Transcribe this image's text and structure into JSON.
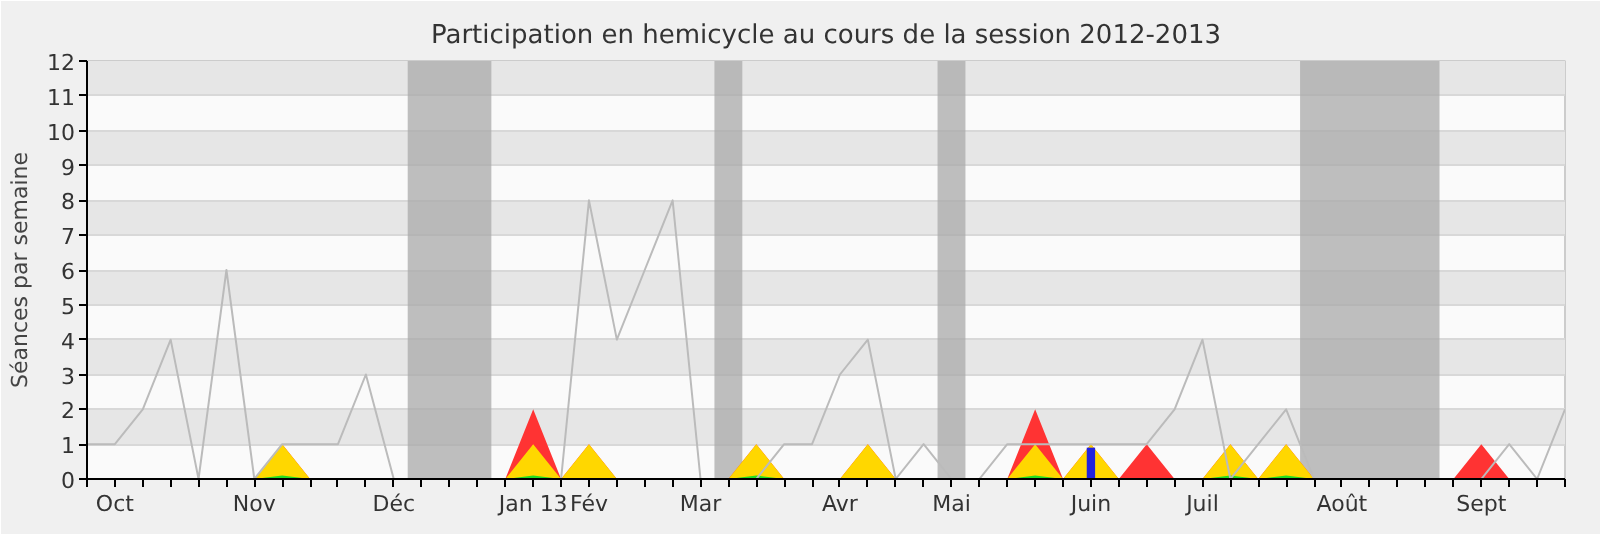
{
  "chart_data": {
    "type": "line",
    "title": "Participation en hemicycle au cours de la session 2012-2013",
    "ylabel": "Séances par semaine",
    "categories": [
      null,
      "Oct",
      null,
      null,
      null,
      null,
      "Nov",
      null,
      null,
      null,
      null,
      "Déc",
      null,
      null,
      null,
      null,
      "Jan 13",
      null,
      "Fév",
      null,
      null,
      null,
      "Mar",
      null,
      null,
      null,
      null,
      "Avr",
      null,
      null,
      null,
      "Mai",
      null,
      null,
      null,
      null,
      "Juin",
      null,
      null,
      null,
      "Juil",
      null,
      null,
      null,
      null,
      "Août",
      null,
      null,
      null,
      null,
      "Sept",
      null,
      null,
      null
    ],
    "series": [
      {
        "type": "area",
        "color": "#ff3333",
        "values": [
          0,
          0,
          0,
          0,
          0,
          0,
          0,
          1,
          0,
          0,
          0,
          0,
          0,
          0,
          0,
          0,
          2,
          0,
          1,
          0,
          0,
          0,
          0,
          0,
          1,
          0,
          0,
          0,
          1,
          0,
          0,
          0,
          0,
          0,
          2,
          0,
          1,
          0,
          1,
          0,
          0,
          1,
          0,
          1,
          0,
          0,
          0,
          0,
          0,
          0,
          1,
          0,
          0,
          0
        ]
      },
      {
        "type": "area",
        "color": "#ffd700",
        "values": [
          0,
          0,
          0,
          0,
          0,
          0,
          0,
          1,
          0,
          0,
          0,
          0,
          0,
          0,
          0,
          0,
          1,
          0,
          1,
          0,
          0,
          0,
          0,
          0,
          1,
          0,
          0,
          0,
          1,
          0,
          0,
          0,
          0,
          0,
          1,
          0,
          1,
          0,
          0,
          0,
          0,
          1,
          0,
          1,
          0,
          0,
          0,
          0,
          0,
          0,
          0,
          0,
          0,
          0
        ]
      },
      {
        "type": "area",
        "color": "#22dd22",
        "values": [
          0,
          0,
          0,
          0,
          0,
          0,
          0,
          0.1,
          0,
          0,
          0,
          0,
          0,
          0,
          0,
          0,
          0.1,
          0,
          0,
          0,
          0,
          0,
          0,
          0,
          0.1,
          0,
          0,
          0,
          0,
          0,
          0,
          0,
          0,
          0,
          0.1,
          0,
          0,
          0,
          0,
          0,
          0,
          0.1,
          0,
          0.1,
          0,
          0,
          0,
          0,
          0,
          0,
          0,
          0,
          0,
          0
        ]
      },
      {
        "type": "bar",
        "color": "#2222dd",
        "values": [
          null,
          null,
          null,
          null,
          null,
          null,
          null,
          null,
          null,
          null,
          null,
          null,
          null,
          null,
          null,
          null,
          null,
          null,
          null,
          null,
          null,
          null,
          null,
          null,
          null,
          null,
          null,
          null,
          null,
          null,
          null,
          null,
          null,
          null,
          null,
          null,
          0.9,
          null,
          null,
          null,
          null,
          null,
          null,
          null,
          null,
          null,
          null,
          null,
          null,
          null,
          null,
          null,
          null,
          null
        ]
      },
      {
        "color": "#bbbbbb",
        "values": [
          1,
          1,
          2,
          4,
          0,
          6,
          0,
          1,
          1,
          1,
          3,
          0,
          null,
          null,
          null,
          0,
          0,
          0,
          8,
          4,
          6,
          8,
          0,
          0,
          0,
          1,
          1,
          3,
          4,
          0,
          1,
          0,
          0,
          1,
          1,
          1,
          1,
          1,
          1,
          2,
          4,
          0,
          1,
          2,
          0,
          null,
          null,
          null,
          null,
          0,
          0,
          1,
          0,
          2
        ]
      }
    ],
    "ylim": [
      0,
      12
    ],
    "yticks": [
      0,
      1,
      2,
      3,
      4,
      5,
      6,
      7,
      8,
      9,
      10,
      11,
      12
    ],
    "grid": "y"
  }
}
